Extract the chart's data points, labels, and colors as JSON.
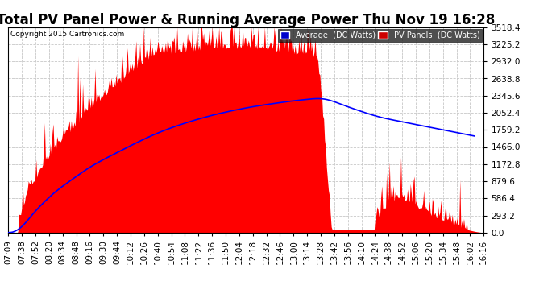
{
  "title": "Total PV Panel Power & Running Average Power Thu Nov 19 16:28",
  "copyright": "Copyright 2015 Cartronics.com",
  "yticks": [
    0.0,
    293.2,
    586.4,
    879.6,
    1172.8,
    1466.0,
    1759.2,
    2052.4,
    2345.6,
    2638.8,
    2932.0,
    3225.2,
    3518.4
  ],
  "ymax": 3518.4,
  "xtick_labels": [
    "07:09",
    "07:38",
    "07:52",
    "08:20",
    "08:34",
    "08:48",
    "09:16",
    "09:30",
    "09:44",
    "10:12",
    "10:26",
    "10:40",
    "10:54",
    "11:08",
    "11:22",
    "11:36",
    "11:50",
    "12:04",
    "12:18",
    "12:32",
    "12:46",
    "13:00",
    "13:14",
    "13:28",
    "13:42",
    "13:56",
    "14:10",
    "14:24",
    "14:38",
    "14:52",
    "15:06",
    "15:20",
    "15:34",
    "15:48",
    "16:02",
    "16:16"
  ],
  "bg_color": "#ffffff",
  "grid_color": "#c8c8c8",
  "pv_color": "#ff0000",
  "avg_color": "#0000ff",
  "legend_avg_bg": "#0000cc",
  "legend_pv_bg": "#cc0000",
  "title_fontsize": 12,
  "label_fontsize": 7.5
}
